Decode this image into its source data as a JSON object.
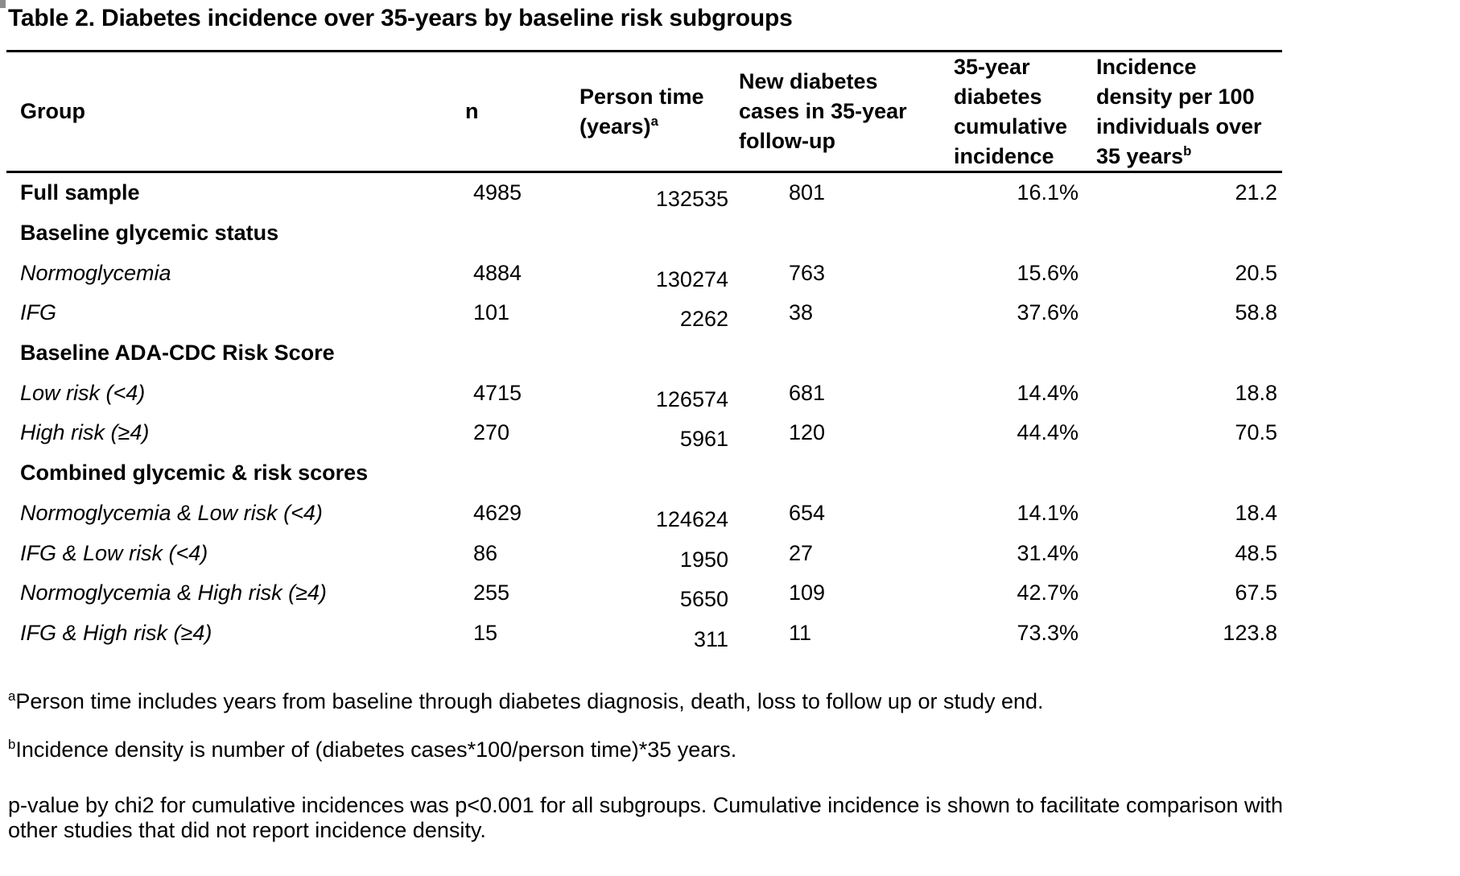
{
  "title": "Table 2. Diabetes incidence over 35-years by baseline risk subgroups",
  "table": {
    "columns": [
      {
        "label": "Group",
        "superscript": ""
      },
      {
        "label": "n",
        "superscript": ""
      },
      {
        "label": "Person time (years)",
        "superscript": "a"
      },
      {
        "label": "New diabetes cases in 35-year follow-up",
        "superscript": ""
      },
      {
        "label": "35-year diabetes cumulative incidence",
        "superscript": ""
      },
      {
        "label": "Incidence density per 100 individuals over 35 years",
        "superscript": "b"
      }
    ],
    "rows": [
      {
        "label": "Full sample",
        "n": "4985",
        "person_time": "132535",
        "new_cases": "801",
        "cum_inc": "16.1%",
        "inc_density": "21.2"
      },
      {
        "label": "Baseline glycemic status",
        "n": "",
        "person_time": "",
        "new_cases": "",
        "cum_inc": "",
        "inc_density": ""
      },
      {
        "label": "Normoglycemia",
        "n": "4884",
        "person_time": "130274",
        "new_cases": "763",
        "cum_inc": "15.6%",
        "inc_density": "20.5"
      },
      {
        "label": "IFG",
        "n": "101",
        "person_time": "2262",
        "new_cases": "38",
        "cum_inc": "37.6%",
        "inc_density": "58.8"
      },
      {
        "label": "Baseline ADA-CDC Risk Score",
        "n": "",
        "person_time": "",
        "new_cases": "",
        "cum_inc": "",
        "inc_density": ""
      },
      {
        "label": "Low risk (<4)",
        "n": "4715",
        "person_time": "126574",
        "new_cases": "681",
        "cum_inc": "14.4%",
        "inc_density": "18.8"
      },
      {
        "label": "High risk (≥4)",
        "n": "270",
        "person_time": "5961",
        "new_cases": "120",
        "cum_inc": "44.4%",
        "inc_density": "70.5"
      },
      {
        "label": "Combined glycemic & risk scores",
        "n": "",
        "person_time": "",
        "new_cases": "",
        "cum_inc": "",
        "inc_density": ""
      },
      {
        "label": "Normoglycemia & Low risk (<4)",
        "n": "4629",
        "person_time": "124624",
        "new_cases": "654",
        "cum_inc": "14.1%",
        "inc_density": "18.4"
      },
      {
        "label": "IFG & Low risk (<4)",
        "n": "86",
        "person_time": "1950",
        "new_cases": "27",
        "cum_inc": "31.4%",
        "inc_density": "48.5"
      },
      {
        "label": "Normoglycemia & High risk (≥4)",
        "n": "255",
        "person_time": "5650",
        "new_cases": "109",
        "cum_inc": "42.7%",
        "inc_density": "67.5"
      },
      {
        "label": "IFG & High risk (≥4)",
        "n": "15",
        "person_time": "311",
        "new_cases": "11",
        "cum_inc": "73.3%",
        "inc_density": "123.8"
      }
    ]
  },
  "footnotes": [
    {
      "marker": "a",
      "text": "Person time includes years from baseline through diabetes diagnosis, death, loss to follow up or study end."
    },
    {
      "marker": "b",
      "text": "Incidence density is number of (diabetes cases*100/person time)*35 years."
    },
    {
      "marker": "",
      "lines": [
        "p-value by chi2 for cumulative incidences was p<0.001 for all subgroups. Cumulative incidence is shown to facilitate comparison with",
        "other studies that did not report incidence density."
      ]
    }
  ]
}
